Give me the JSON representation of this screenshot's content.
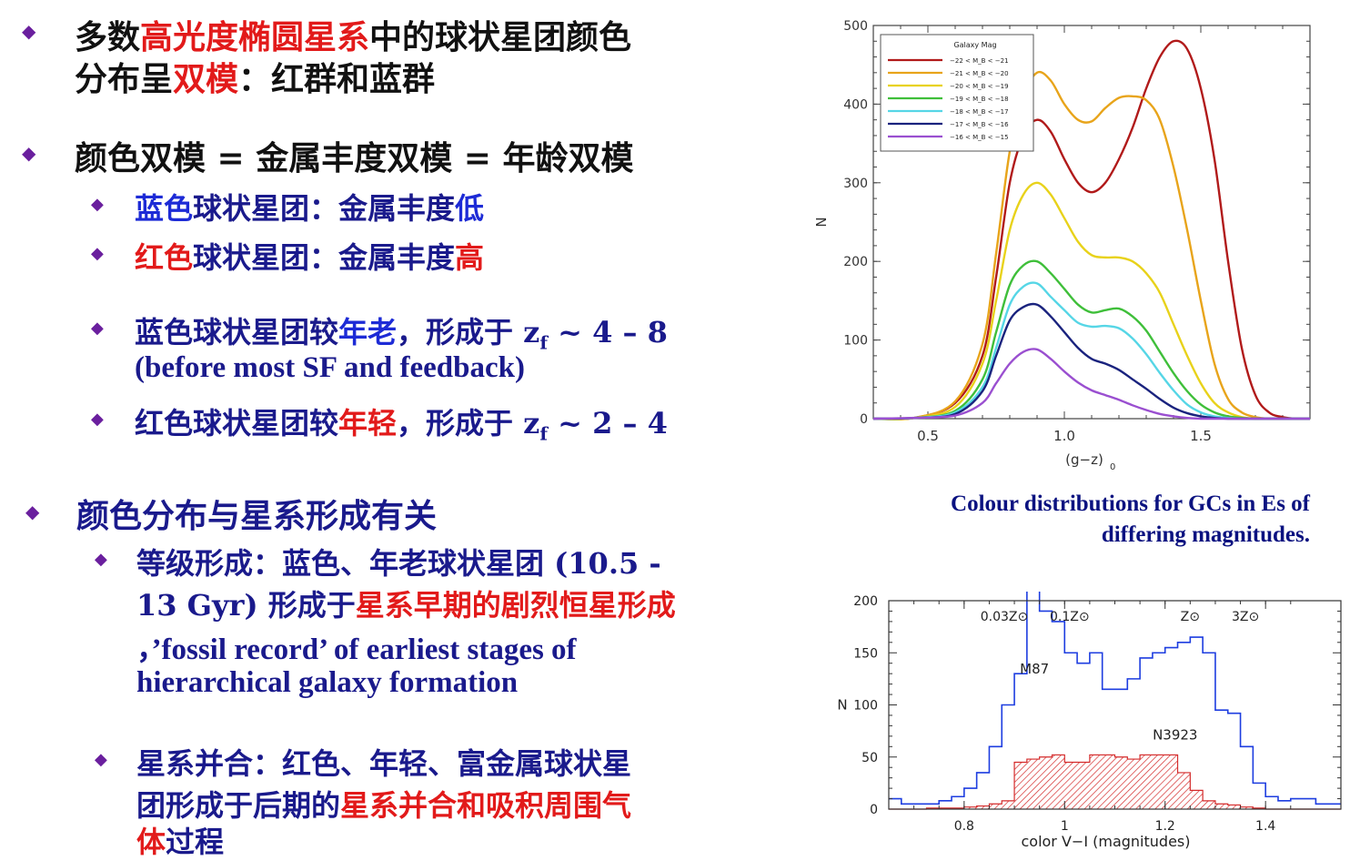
{
  "bullets": {
    "b1": {
      "line1": [
        "多数",
        "高光度椭圆星系",
        "中的球状星团颜色"
      ],
      "line2": [
        "分布呈",
        "双模",
        "：红群和蓝群"
      ]
    },
    "b2": {
      "line1": "颜色双模 = 金属丰度双模 = 年龄双模",
      "sub1": [
        "蓝色",
        "球状星团：金属丰度",
        "低"
      ],
      "sub2": [
        "红色",
        "球状星团：金属丰度",
        "高"
      ],
      "sub3_line1": [
        "蓝色球状星团较",
        "年老",
        "，形成于 z",
        "f",
        " ~ 4 – 8"
      ],
      "sub3_line2": "(before most SF and feedback)",
      "sub4": [
        "红色球状星团较",
        "年轻",
        "，形成于 z",
        "f",
        " ~ 2 – 4"
      ]
    },
    "b3": {
      "line1": "颜色分布与星系形成有关",
      "sub1_line1": "等级形成：蓝色、年老球状星团 (10.5 -",
      "sub1_line2": [
        "13 Gyr) 形成于",
        "星系早期的剧烈恒星形成"
      ],
      "sub1_line3": "，’fossil record’ of earliest stages of",
      "sub1_line4": "hierarchical galaxy formation",
      "sub2_line1": "星系并合：红色、年轻、富金属球状星",
      "sub2_line2": [
        "团形成于后期的",
        "星系并合和吸积周围气"
      ],
      "sub2_line3": [
        "体",
        "过程"
      ]
    }
  },
  "caption": {
    "line1": "Colour distributions for GCs in Es of",
    "line2": "differing magnitudes."
  },
  "colors": {
    "red": "#e21a1a",
    "blue": "#1d2bd6",
    "navy": "#1a1a8c",
    "bullet": "#6a1f9e"
  },
  "chart_data": [
    {
      "type": "line",
      "xlabel": "(g−z)",
      "xlabel_sub": "0",
      "ylabel": "N",
      "xlim": [
        0.3,
        1.9
      ],
      "ylim": [
        0,
        500
      ],
      "xticks": [
        "0.5",
        "1.0",
        "1.5"
      ],
      "yticks": [
        "0",
        "100",
        "200",
        "300",
        "400",
        "500"
      ],
      "legend": {
        "title": "Galaxy Mag",
        "placement": "top-left",
        "entries": [
          "−22 < M_B < −21",
          "−21 < M_B < −20",
          "−20 < M_B < −19",
          "−19 < M_B < −18",
          "−18 < M_B < −17",
          "−17 < M_B < −16",
          "−16 < M_B < −15"
        ]
      },
      "x": [
        0.3,
        0.45,
        0.6,
        0.7,
        0.75,
        0.8,
        0.85,
        0.9,
        0.95,
        1.0,
        1.05,
        1.1,
        1.15,
        1.2,
        1.25,
        1.3,
        1.35,
        1.4,
        1.45,
        1.5,
        1.55,
        1.6,
        1.65,
        1.7,
        1.75,
        1.8,
        1.85,
        1.9
      ],
      "series": [
        {
          "color": "#b11a1a",
          "values": [
            0,
            1,
            20,
            80,
            180,
            300,
            360,
            380,
            365,
            330,
            300,
            288,
            300,
            330,
            370,
            420,
            460,
            480,
            470,
            420,
            330,
            200,
            90,
            30,
            8,
            2,
            0,
            0
          ]
        },
        {
          "color": "#e8a41a",
          "values": [
            0,
            1,
            22,
            95,
            210,
            340,
            410,
            440,
            430,
            400,
            380,
            378,
            395,
            408,
            410,
            405,
            380,
            320,
            240,
            150,
            70,
            25,
            8,
            2,
            0,
            0,
            0,
            0
          ]
        },
        {
          "color": "#e8d21a",
          "values": [
            0,
            1,
            15,
            70,
            150,
            240,
            285,
            300,
            285,
            255,
            225,
            208,
            205,
            205,
            200,
            185,
            160,
            120,
            80,
            45,
            20,
            8,
            2,
            0,
            0,
            0,
            0,
            0
          ]
        },
        {
          "color": "#3fbf3a",
          "values": [
            0,
            1,
            10,
            50,
            110,
            170,
            195,
            200,
            185,
            165,
            145,
            135,
            138,
            140,
            130,
            112,
            85,
            58,
            35,
            18,
            8,
            3,
            1,
            0,
            0,
            0,
            0,
            0
          ]
        },
        {
          "color": "#56d6e6",
          "values": [
            0,
            1,
            8,
            40,
            90,
            145,
            168,
            172,
            155,
            138,
            122,
            117,
            118,
            115,
            102,
            82,
            58,
            36,
            18,
            8,
            3,
            1,
            0,
            0,
            0,
            0,
            0,
            0
          ]
        },
        {
          "color": "#1a237e",
          "values": [
            0,
            1,
            6,
            35,
            80,
            125,
            142,
            145,
            130,
            110,
            90,
            76,
            70,
            62,
            50,
            38,
            25,
            14,
            7,
            3,
            1,
            0,
            0,
            0,
            0,
            0,
            0,
            0
          ]
        },
        {
          "color": "#9a4fd0",
          "values": [
            0,
            1,
            4,
            20,
            45,
            70,
            85,
            88,
            76,
            60,
            46,
            36,
            30,
            24,
            17,
            11,
            6,
            3,
            1,
            0,
            0,
            0,
            0,
            0,
            0,
            0,
            0,
            0
          ]
        }
      ]
    },
    {
      "type": "bar",
      "xlabel": "color V−I (magnitudes)",
      "ylabel": "N",
      "xlim": [
        0.65,
        1.55
      ],
      "ylim": [
        0,
        200
      ],
      "xticks": [
        "0.8",
        "1",
        "1.2",
        "1.4"
      ],
      "yticks": [
        "0",
        "50",
        "100",
        "150",
        "200"
      ],
      "top_labels": [
        "0.03Z⊙",
        "0.1Z⊙",
        "Z⊙",
        "3Z⊙"
      ],
      "top_label_x": [
        0.88,
        1.01,
        1.25,
        1.36
      ],
      "bin_edges": [
        0.65,
        0.675,
        0.7,
        0.725,
        0.75,
        0.775,
        0.8,
        0.825,
        0.85,
        0.875,
        0.9,
        0.925,
        0.95,
        0.975,
        1.0,
        1.025,
        1.05,
        1.075,
        1.1,
        1.125,
        1.15,
        1.175,
        1.2,
        1.225,
        1.25,
        1.275,
        1.3,
        1.325,
        1.35,
        1.375,
        1.4,
        1.425,
        1.45,
        1.475,
        1.5,
        1.525,
        1.55
      ],
      "series": [
        {
          "name": "M87",
          "style": "step",
          "color": "#1d3de0",
          "values": [
            10,
            5,
            5,
            5,
            8,
            12,
            20,
            35,
            60,
            100,
            130,
            210,
            190,
            180,
            150,
            140,
            150,
            115,
            115,
            125,
            145,
            150,
            155,
            160,
            165,
            150,
            95,
            92,
            60,
            25,
            12,
            8,
            10,
            10,
            5,
            5
          ]
        },
        {
          "name": "N3923",
          "style": "hatched",
          "color": "#d42a2a",
          "values": [
            0,
            0,
            0,
            1,
            1,
            1,
            2,
            3,
            5,
            8,
            45,
            48,
            50,
            52,
            45,
            45,
            52,
            52,
            50,
            48,
            52,
            52,
            52,
            35,
            18,
            8,
            5,
            4,
            2,
            1,
            0,
            0,
            0,
            0,
            0,
            0
          ]
        }
      ],
      "series_labels": [
        "M87",
        "N3923"
      ],
      "series_label_x": [
        0.94,
        1.22
      ],
      "series_label_y": [
        130,
        67
      ]
    }
  ]
}
